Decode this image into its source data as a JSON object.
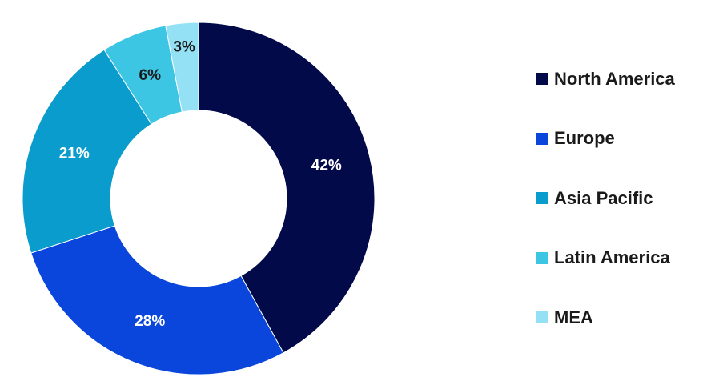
{
  "chart_data": {
    "type": "pie",
    "subtype": "donut",
    "categories": [
      "North America",
      "Europe",
      "Asia Pacific",
      "Latin America",
      "MEA"
    ],
    "values": [
      42,
      28,
      21,
      6,
      3
    ],
    "labels": [
      "42%",
      "28%",
      "21%",
      "6%",
      "3%"
    ],
    "colors": [
      "#030a4a",
      "#0a46dc",
      "#0a9ccc",
      "#3cc6e4",
      "#94e0f4"
    ],
    "label_colors": [
      "#ffffff",
      "#ffffff",
      "#ffffff",
      "#1a1a1a",
      "#1a1a1a"
    ],
    "legend_position": "right"
  }
}
